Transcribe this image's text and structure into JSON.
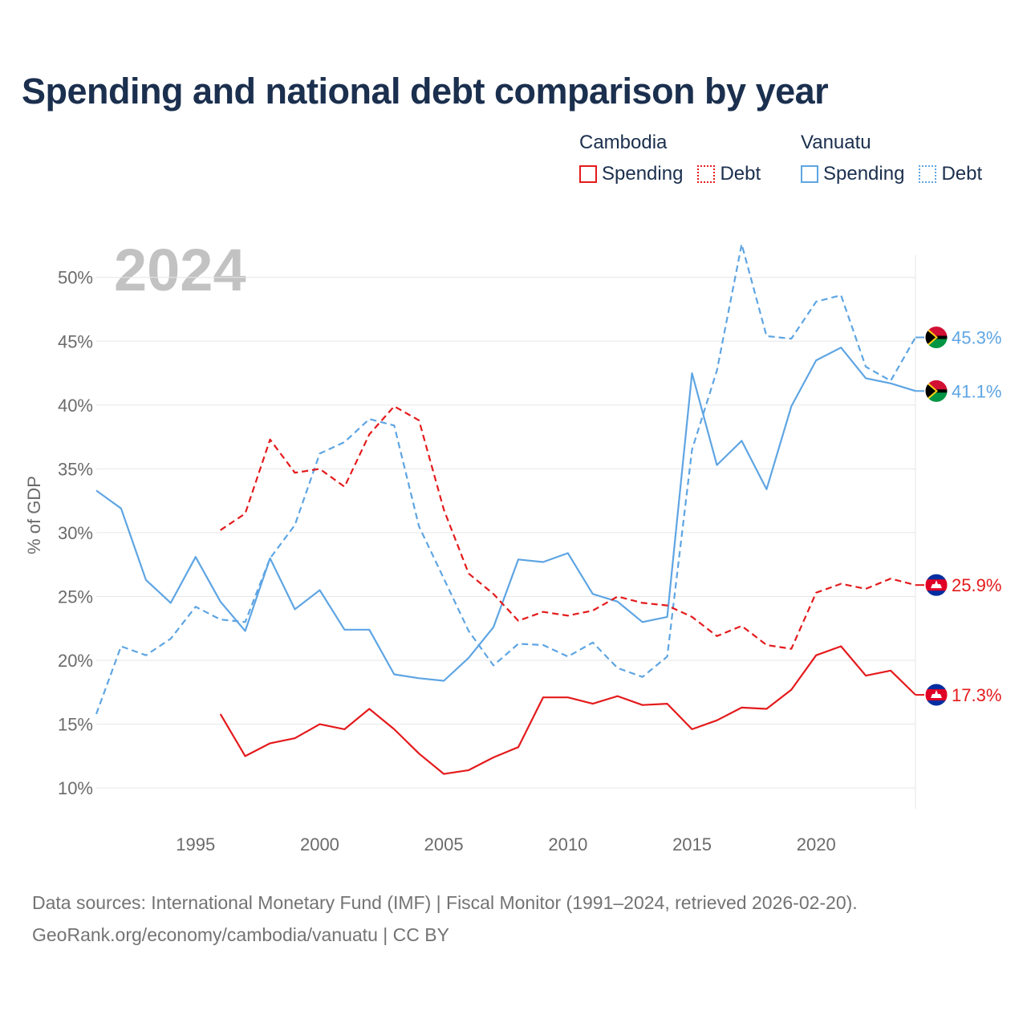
{
  "title": "Spending and national debt comparison by year",
  "legend": {
    "groups": [
      {
        "name": "Cambodia",
        "items": [
          {
            "label": "Spending"
          },
          {
            "label": "Debt"
          }
        ]
      },
      {
        "name": "Vanuatu",
        "items": [
          {
            "label": "Spending"
          },
          {
            "label": "Debt"
          }
        ]
      }
    ]
  },
  "colors": {
    "cambodia": "#e41a1c",
    "vanuatu": "#5ea5e3",
    "axis_text": "#6b6b6b",
    "grid": "#e6e6e6",
    "title": "#1b2f4e",
    "year_watermark": "#c2c2c2"
  },
  "source": {
    "line1": "Data sources: International Monetary Fund (IMF) | Fiscal Monitor (1991–2024, retrieved 2026-02-20).",
    "line2": "GeoRank.org/economy/cambodia/vanuatu | CC BY"
  },
  "chart_data": {
    "type": "line",
    "title": "Spending and national debt comparison by year",
    "ylabel": "% of GDP",
    "xlabel": "",
    "year_label": "2024",
    "ylim": [
      8.5,
      53
    ],
    "xlim": [
      1991,
      2024
    ],
    "yticks": [
      10,
      15,
      20,
      25,
      30,
      35,
      40,
      45,
      50
    ],
    "ytick_labels": [
      "10%",
      "15%",
      "20%",
      "25%",
      "30%",
      "35%",
      "40%",
      "45%",
      "50%"
    ],
    "xticks": [
      1995,
      2000,
      2005,
      2010,
      2015,
      2020
    ],
    "xtick_labels": [
      "1995",
      "2000",
      "2005",
      "2010",
      "2015",
      "2020"
    ],
    "grid": true,
    "series": [
      {
        "name": "Vanuatu Debt",
        "country": "Vanuatu",
        "metric": "Debt",
        "color_key": "vanuatu",
        "dashed": true,
        "end_label": "45.3%",
        "flag": "vanuatu",
        "points": [
          [
            1991,
            15.8
          ],
          [
            1992,
            21.1
          ],
          [
            1993,
            20.4
          ],
          [
            1994,
            21.7
          ],
          [
            1995,
            24.2
          ],
          [
            1996,
            23.2
          ],
          [
            1997,
            23.0
          ],
          [
            1998,
            28.0
          ],
          [
            1999,
            30.6
          ],
          [
            2000,
            36.2
          ],
          [
            2001,
            37.1
          ],
          [
            2002,
            38.9
          ],
          [
            2003,
            38.4
          ],
          [
            2004,
            30.5
          ],
          [
            2005,
            26.4
          ],
          [
            2006,
            22.3
          ],
          [
            2007,
            19.6
          ],
          [
            2008,
            21.3
          ],
          [
            2009,
            21.2
          ],
          [
            2010,
            20.3
          ],
          [
            2011,
            21.4
          ],
          [
            2012,
            19.4
          ],
          [
            2013,
            18.7
          ],
          [
            2014,
            20.3
          ],
          [
            2015,
            36.5
          ],
          [
            2016,
            42.7
          ],
          [
            2017,
            52.6
          ],
          [
            2018,
            45.4
          ],
          [
            2019,
            45.2
          ],
          [
            2020,
            48.1
          ],
          [
            2021,
            48.6
          ],
          [
            2022,
            43.0
          ],
          [
            2023,
            41.9
          ],
          [
            2024,
            45.3
          ]
        ]
      },
      {
        "name": "Vanuatu Spending",
        "country": "Vanuatu",
        "metric": "Spending",
        "color_key": "vanuatu",
        "dashed": false,
        "end_label": "41.1%",
        "flag": "vanuatu",
        "points": [
          [
            1991,
            33.3
          ],
          [
            1992,
            31.9
          ],
          [
            1993,
            26.3
          ],
          [
            1994,
            24.5
          ],
          [
            1995,
            28.1
          ],
          [
            1996,
            24.6
          ],
          [
            1997,
            22.3
          ],
          [
            1998,
            28.0
          ],
          [
            1999,
            24.0
          ],
          [
            2000,
            25.5
          ],
          [
            2001,
            22.4
          ],
          [
            2002,
            22.4
          ],
          [
            2003,
            18.9
          ],
          [
            2004,
            18.6
          ],
          [
            2005,
            18.4
          ],
          [
            2006,
            20.2
          ],
          [
            2007,
            22.6
          ],
          [
            2008,
            27.9
          ],
          [
            2009,
            27.7
          ],
          [
            2010,
            28.4
          ],
          [
            2011,
            25.2
          ],
          [
            2012,
            24.6
          ],
          [
            2013,
            23.0
          ],
          [
            2014,
            23.4
          ],
          [
            2015,
            42.5
          ],
          [
            2016,
            35.3
          ],
          [
            2017,
            37.2
          ],
          [
            2018,
            33.4
          ],
          [
            2019,
            39.9
          ],
          [
            2020,
            43.5
          ],
          [
            2021,
            44.5
          ],
          [
            2022,
            42.1
          ],
          [
            2023,
            41.7
          ],
          [
            2024,
            41.1
          ]
        ]
      },
      {
        "name": "Cambodia Debt",
        "country": "Cambodia",
        "metric": "Debt",
        "color_key": "cambodia",
        "dashed": true,
        "end_label": "25.9%",
        "flag": "cambodia",
        "points": [
          [
            1996,
            30.2
          ],
          [
            1997,
            31.5
          ],
          [
            1998,
            37.3
          ],
          [
            1999,
            34.7
          ],
          [
            2000,
            35.0
          ],
          [
            2001,
            33.6
          ],
          [
            2002,
            37.7
          ],
          [
            2003,
            39.9
          ],
          [
            2004,
            38.8
          ],
          [
            2005,
            31.8
          ],
          [
            2006,
            26.8
          ],
          [
            2007,
            25.2
          ],
          [
            2008,
            23.1
          ],
          [
            2009,
            23.8
          ],
          [
            2010,
            23.5
          ],
          [
            2011,
            23.9
          ],
          [
            2012,
            25.0
          ],
          [
            2013,
            24.5
          ],
          [
            2014,
            24.3
          ],
          [
            2015,
            23.4
          ],
          [
            2016,
            21.9
          ],
          [
            2017,
            22.7
          ],
          [
            2018,
            21.2
          ],
          [
            2019,
            20.9
          ],
          [
            2020,
            25.3
          ],
          [
            2021,
            26.0
          ],
          [
            2022,
            25.6
          ],
          [
            2023,
            26.4
          ],
          [
            2024,
            25.9
          ]
        ]
      },
      {
        "name": "Cambodia Spending",
        "country": "Cambodia",
        "metric": "Spending",
        "color_key": "cambodia",
        "dashed": false,
        "end_label": "17.3%",
        "flag": "cambodia",
        "points": [
          [
            1996,
            15.8
          ],
          [
            1997,
            12.5
          ],
          [
            1998,
            13.5
          ],
          [
            1999,
            13.9
          ],
          [
            2000,
            15.0
          ],
          [
            2001,
            14.6
          ],
          [
            2002,
            16.2
          ],
          [
            2003,
            14.6
          ],
          [
            2004,
            12.7
          ],
          [
            2005,
            11.1
          ],
          [
            2006,
            11.4
          ],
          [
            2007,
            12.4
          ],
          [
            2008,
            13.2
          ],
          [
            2009,
            17.1
          ],
          [
            2010,
            17.1
          ],
          [
            2011,
            16.6
          ],
          [
            2012,
            17.2
          ],
          [
            2013,
            16.5
          ],
          [
            2014,
            16.6
          ],
          [
            2015,
            14.6
          ],
          [
            2016,
            15.3
          ],
          [
            2017,
            16.3
          ],
          [
            2018,
            16.2
          ],
          [
            2019,
            17.7
          ],
          [
            2020,
            20.4
          ],
          [
            2021,
            21.1
          ],
          [
            2022,
            18.8
          ],
          [
            2023,
            19.2
          ],
          [
            2024,
            17.3
          ]
        ]
      }
    ]
  }
}
